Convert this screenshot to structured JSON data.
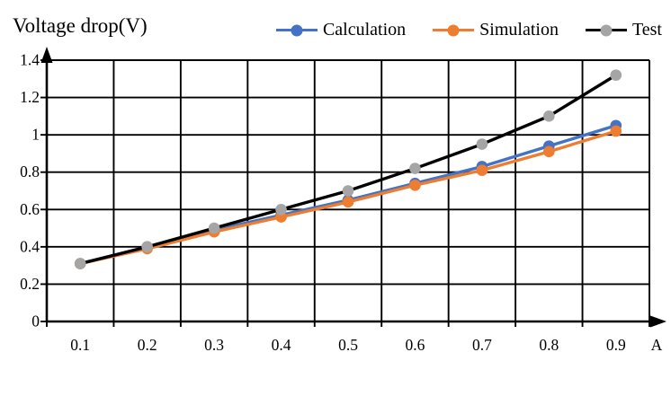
{
  "chart_data": {
    "type": "line",
    "title": "Voltage drop(V)",
    "ylabel": "Voltage drop(V)",
    "xlabel": "A",
    "categories": [
      "0.1",
      "0.2",
      "0.3",
      "0.4",
      "0.5",
      "0.6",
      "0.7",
      "0.8",
      "0.9"
    ],
    "y_ticks": [
      "0",
      "0.2",
      "0.4",
      "0.6",
      "0.8",
      "1",
      "1.2",
      "1.4"
    ],
    "ylim": [
      0,
      1.4
    ],
    "grid": true,
    "grid_color": "#000000",
    "axis_color": "#000000",
    "legend_position": "top-right",
    "series": [
      {
        "name": "Calculation",
        "line_color": "#4472C4",
        "marker_color": "#4472C4",
        "values": [
          0.31,
          0.4,
          0.49,
          0.57,
          0.65,
          0.74,
          0.83,
          0.94,
          1.05
        ]
      },
      {
        "name": "Simulation",
        "line_color": "#ED7D31",
        "marker_color": "#ED7D31",
        "values": [
          0.31,
          0.39,
          0.48,
          0.56,
          0.64,
          0.73,
          0.81,
          0.91,
          1.02
        ]
      },
      {
        "name": "Test",
        "line_color": "#000000",
        "marker_color": "#A5A5A5",
        "values": [
          0.31,
          0.4,
          0.5,
          0.6,
          0.7,
          0.82,
          0.95,
          1.1,
          1.32
        ]
      }
    ]
  }
}
